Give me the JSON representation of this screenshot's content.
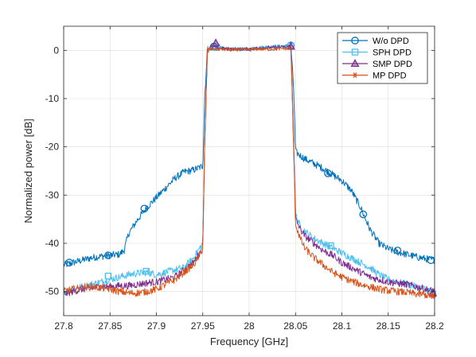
{
  "chart_data": {
    "type": "line",
    "title": "",
    "xlabel": "Frequency [GHz]",
    "ylabel": "Normalized power [dB]",
    "xlim": [
      27.8,
      28.2
    ],
    "ylim": [
      -55,
      5
    ],
    "xticks": [
      27.8,
      27.85,
      27.9,
      27.95,
      28.0,
      28.05,
      28.1,
      28.15,
      28.2
    ],
    "xtick_labels": [
      "27.8",
      "27.85",
      "27.9",
      "27.95",
      "28",
      "28.05",
      "28.1",
      "28.15",
      "28.2"
    ],
    "yticks": [
      0,
      -10,
      -20,
      -30,
      -40,
      -50
    ],
    "ytick_labels": [
      "0",
      "-10",
      "-20",
      "-30",
      "-40",
      "-50"
    ],
    "grid": true,
    "legend_position": "top-right",
    "series": [
      {
        "name": "W/o DPD",
        "color": "#0072BD",
        "marker": "circle",
        "x": [
          27.8,
          27.81,
          27.82,
          27.83,
          27.84,
          27.85,
          27.86,
          27.865,
          27.87,
          27.88,
          27.89,
          27.9,
          27.91,
          27.92,
          27.93,
          27.94,
          27.95,
          27.952,
          27.955,
          27.96,
          27.97,
          27.98,
          27.99,
          28.0,
          28.01,
          28.02,
          28.03,
          28.04,
          28.045,
          28.048,
          28.05,
          28.055,
          28.06,
          28.07,
          28.08,
          28.09,
          28.1,
          28.11,
          28.12,
          28.13,
          28.14,
          28.15,
          28.16,
          28.17,
          28.18,
          28.19,
          28.2
        ],
        "y": [
          -44.5,
          -44,
          -43.5,
          -43,
          -42.7,
          -42.5,
          -42.3,
          -41.5,
          -38,
          -35,
          -32.5,
          -30.5,
          -28.5,
          -26.5,
          -25.2,
          -24.8,
          -24,
          -10,
          0.2,
          0.3,
          0.5,
          0.2,
          0.3,
          0.2,
          0.5,
          0.7,
          0.8,
          0.9,
          1,
          -8,
          -21,
          -21.8,
          -22.5,
          -23.5,
          -24.5,
          -25.8,
          -27,
          -29,
          -32.5,
          -37,
          -40,
          -41.2,
          -41.8,
          -42.3,
          -42.8,
          -43.2,
          -43.5
        ],
        "marker_x": [
          27.806,
          27.848,
          27.887,
          27.962,
          28.045,
          28.085,
          28.123,
          28.16,
          28.196
        ],
        "marker_y": [
          -44,
          -42.5,
          -32.8,
          0.8,
          1,
          -25.5,
          -34,
          -41.5,
          -43.5
        ]
      },
      {
        "name": "SPH DPD",
        "color": "#4DBEEE",
        "marker": "square",
        "x": [
          27.8,
          27.81,
          27.82,
          27.83,
          27.84,
          27.85,
          27.86,
          27.87,
          27.88,
          27.89,
          27.9,
          27.91,
          27.92,
          27.93,
          27.94,
          27.945,
          27.95,
          27.952,
          27.955,
          27.96,
          27.97,
          27.98,
          27.99,
          28.0,
          28.01,
          28.02,
          28.03,
          28.04,
          28.045,
          28.048,
          28.05,
          28.055,
          28.06,
          28.07,
          28.08,
          28.09,
          28.1,
          28.11,
          28.12,
          28.13,
          28.14,
          28.15,
          28.16,
          28.17,
          28.18,
          28.19,
          28.2
        ],
        "y": [
          -50,
          -49.5,
          -49,
          -48.5,
          -48,
          -47.5,
          -47,
          -46.5,
          -46.2,
          -46,
          -46.5,
          -46,
          -45.5,
          -45,
          -43,
          -41.5,
          -40,
          -20,
          0.2,
          0.3,
          0.4,
          0.2,
          0.3,
          0.3,
          0.5,
          0.6,
          0.7,
          0.8,
          0.9,
          -20,
          -34,
          -36.5,
          -37.5,
          -39,
          -40,
          -41,
          -42,
          -43,
          -44,
          -45,
          -46.5,
          -47.5,
          -48,
          -48.5,
          -49,
          -49.5,
          -50
        ],
        "marker_x": [
          27.848,
          27.889,
          27.965,
          28.045,
          28.088,
          28.198
        ],
        "marker_y": [
          -46.8,
          -45.8,
          0.6,
          0.9,
          -40.5,
          -50.5
        ]
      },
      {
        "name": "SMP DPD",
        "color": "#7E2F8E",
        "marker": "triangle",
        "x": [
          27.8,
          27.81,
          27.82,
          27.83,
          27.84,
          27.85,
          27.86,
          27.87,
          27.88,
          27.89,
          27.9,
          27.91,
          27.92,
          27.93,
          27.94,
          27.945,
          27.95,
          27.952,
          27.955,
          27.96,
          27.97,
          27.98,
          27.99,
          28.0,
          28.01,
          28.02,
          28.03,
          28.04,
          28.045,
          28.048,
          28.05,
          28.055,
          28.06,
          28.07,
          28.08,
          28.09,
          28.1,
          28.11,
          28.12,
          28.13,
          28.14,
          28.15,
          28.16,
          28.17,
          28.18,
          28.19,
          28.2
        ],
        "y": [
          -50.5,
          -50,
          -49.5,
          -49.3,
          -49,
          -49,
          -48.8,
          -48.8,
          -48.5,
          -48.2,
          -48,
          -47.5,
          -47,
          -45.5,
          -44,
          -42.5,
          -41,
          -20,
          0.3,
          0.8,
          0.4,
          0.3,
          0.2,
          0.3,
          0.5,
          0.6,
          0.6,
          0.7,
          0.8,
          -18,
          -35,
          -37,
          -38.5,
          -40,
          -41.5,
          -42.5,
          -44,
          -45,
          -46,
          -47,
          -47.5,
          -48,
          -48.3,
          -48.5,
          -49,
          -49.5,
          -50
        ],
        "marker_x": [
          27.964,
          28.045,
          28.198
        ],
        "marker_y": [
          1.5,
          0.8,
          -50.3
        ]
      },
      {
        "name": "MP DPD",
        "color": "#D95319",
        "marker": "asterisk",
        "x": [
          27.8,
          27.81,
          27.82,
          27.83,
          27.84,
          27.85,
          27.86,
          27.87,
          27.88,
          27.89,
          27.9,
          27.91,
          27.92,
          27.93,
          27.94,
          27.945,
          27.95,
          27.952,
          27.955,
          27.96,
          27.97,
          27.98,
          27.99,
          28.0,
          28.01,
          28.02,
          28.03,
          28.04,
          28.045,
          28.048,
          28.05,
          28.055,
          28.06,
          28.07,
          28.08,
          28.09,
          28.1,
          28.11,
          28.12,
          28.13,
          28.14,
          28.15,
          28.16,
          28.17,
          28.18,
          28.19,
          28.2
        ],
        "y": [
          -50,
          -49.5,
          -49.2,
          -49,
          -49.2,
          -49.5,
          -50,
          -50.3,
          -50.3,
          -50,
          -49.5,
          -48.5,
          -47.5,
          -46,
          -44.5,
          -43,
          -41,
          -20,
          0.2,
          0.3,
          0.2,
          0.1,
          0.2,
          0.1,
          0.3,
          0.2,
          0.3,
          0.4,
          0.5,
          -20,
          -36,
          -39,
          -41,
          -43,
          -44.5,
          -46,
          -47,
          -47.8,
          -48.5,
          -49,
          -49.5,
          -49.8,
          -50,
          -50.2,
          -50.5,
          -50.7,
          -51
        ],
        "marker_x": [
          28.198
        ],
        "marker_y": [
          -51
        ]
      }
    ]
  }
}
